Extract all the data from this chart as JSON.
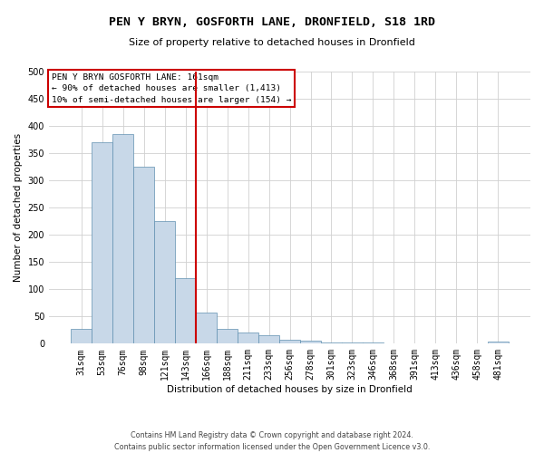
{
  "title": "PEN Y BRYN, GOSFORTH LANE, DRONFIELD, S18 1RD",
  "subtitle": "Size of property relative to detached houses in Dronfield",
  "xlabel": "Distribution of detached houses by size in Dronfield",
  "ylabel": "Number of detached properties",
  "footer_line1": "Contains HM Land Registry data © Crown copyright and database right 2024.",
  "footer_line2": "Contains public sector information licensed under the Open Government Licence v3.0.",
  "bar_labels": [
    "31sqm",
    "53sqm",
    "76sqm",
    "98sqm",
    "121sqm",
    "143sqm",
    "166sqm",
    "188sqm",
    "211sqm",
    "233sqm",
    "256sqm",
    "278sqm",
    "301sqm",
    "323sqm",
    "346sqm",
    "368sqm",
    "391sqm",
    "413sqm",
    "436sqm",
    "458sqm",
    "481sqm"
  ],
  "bar_values": [
    27,
    370,
    385,
    325,
    225,
    120,
    57,
    27,
    20,
    15,
    7,
    5,
    3,
    2,
    2,
    1,
    1,
    0,
    0,
    0,
    4
  ],
  "bar_color": "#c8d8e8",
  "bar_edge_color": "#6090b0",
  "vline_x": 5.5,
  "vline_color": "#cc0000",
  "ylim": [
    0,
    500
  ],
  "yticks": [
    0,
    50,
    100,
    150,
    200,
    250,
    300,
    350,
    400,
    450,
    500
  ],
  "annotation_title": "PEN Y BRYN GOSFORTH LANE: 161sqm",
  "annotation_line2": "← 90% of detached houses are smaller (1,413)",
  "annotation_line3": "10% of semi-detached houses are larger (154) →",
  "annotation_box_color": "#ffffff",
  "annotation_box_edge": "#cc0000",
  "background_color": "#ffffff",
  "grid_color": "#d0d0d0"
}
